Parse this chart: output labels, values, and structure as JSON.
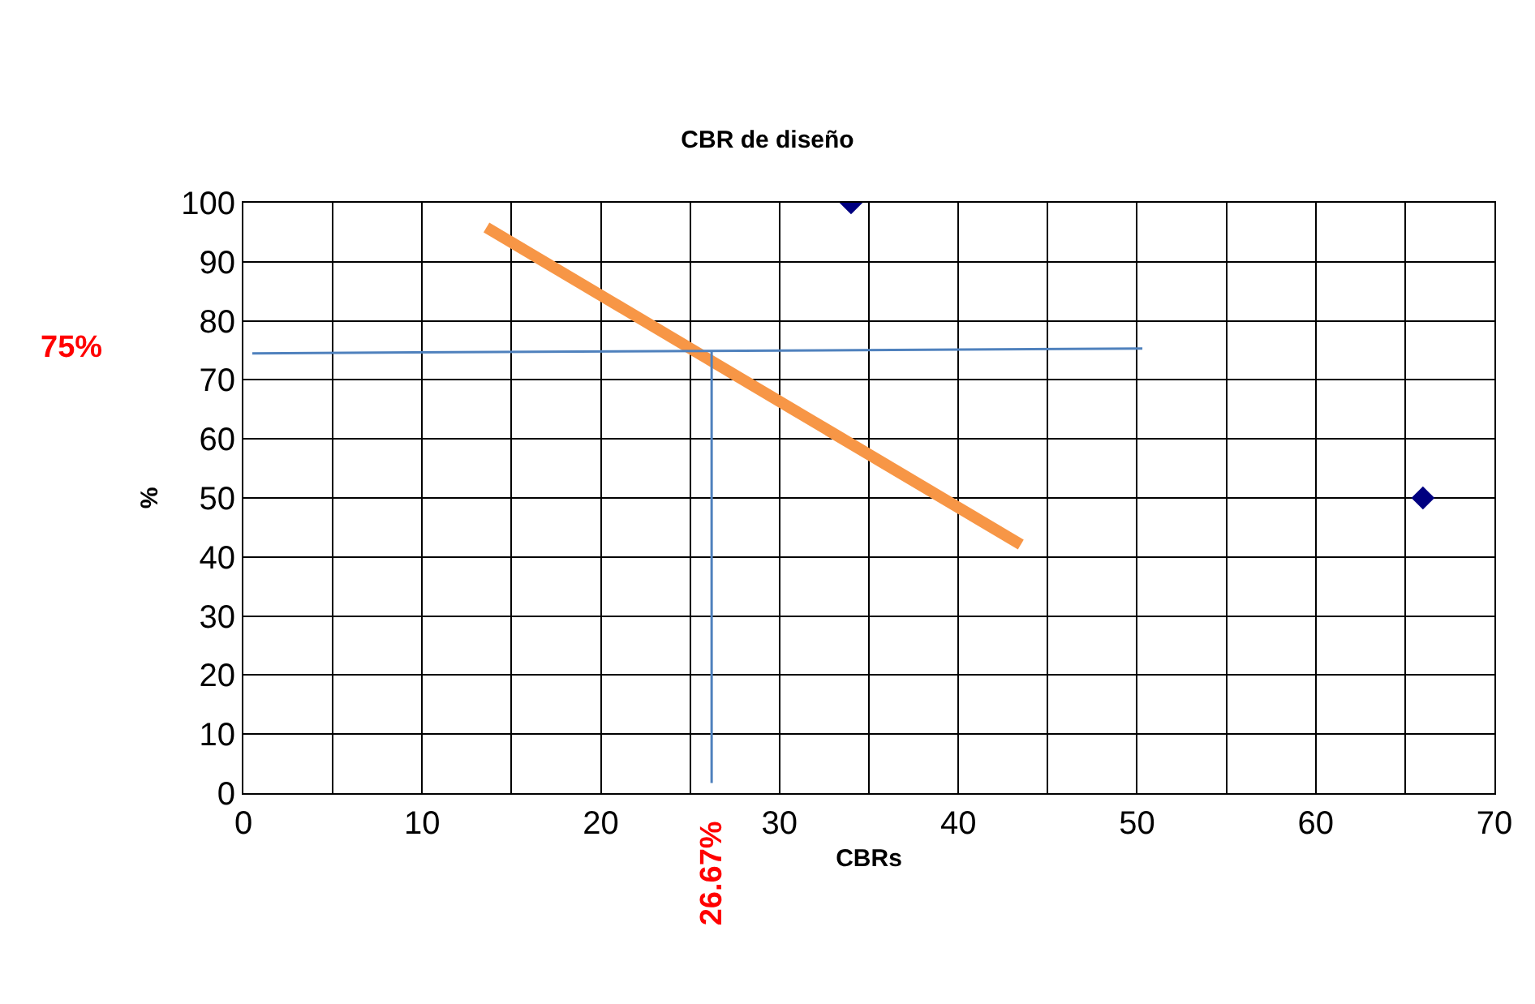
{
  "chart_data": {
    "type": "scatter",
    "title": "CBR de diseño",
    "xlabel": "CBRs",
    "ylabel": "%",
    "xlim": [
      0,
      70
    ],
    "ylim": [
      0,
      100
    ],
    "xticks": [
      0,
      {
        "value": 5,
        "label": null
      },
      10,
      {
        "value": 15,
        "label": null
      },
      20,
      {
        "value": 25,
        "label": null
      },
      30,
      {
        "value": 35,
        "label": null
      },
      40,
      {
        "value": 45,
        "label": null
      },
      50,
      {
        "value": 55,
        "label": null
      },
      60,
      {
        "value": 65,
        "label": null
      },
      70
    ],
    "yticks": [
      0,
      10,
      20,
      30,
      40,
      50,
      60,
      70,
      80,
      90,
      100
    ],
    "grid": true,
    "series": [
      {
        "color": "#000080",
        "marker": "diamond",
        "x": [
          34,
          66
        ],
        "values": [
          100,
          50
        ]
      },
      {
        "type": "line",
        "color": "#f79646",
        "marker": "none",
        "line_style": "solid",
        "x": [
          13.6,
          43.5
        ],
        "values": [
          95.8,
          42.1
        ]
      },
      {
        "type": "line",
        "color": "#4f81bd",
        "marker": "none",
        "line_style": "solid",
        "x": [
          0.5,
          50.3
        ],
        "values": [
          74.5,
          75.3
        ]
      },
      {
        "type": "line",
        "color": "#4f81bd",
        "marker": "none",
        "line_style": "solid",
        "x": [
          26.2,
          26.2
        ],
        "values": [
          1.7,
          75
        ]
      }
    ],
    "annotations": [
      "75%",
      "26.67%"
    ]
  }
}
